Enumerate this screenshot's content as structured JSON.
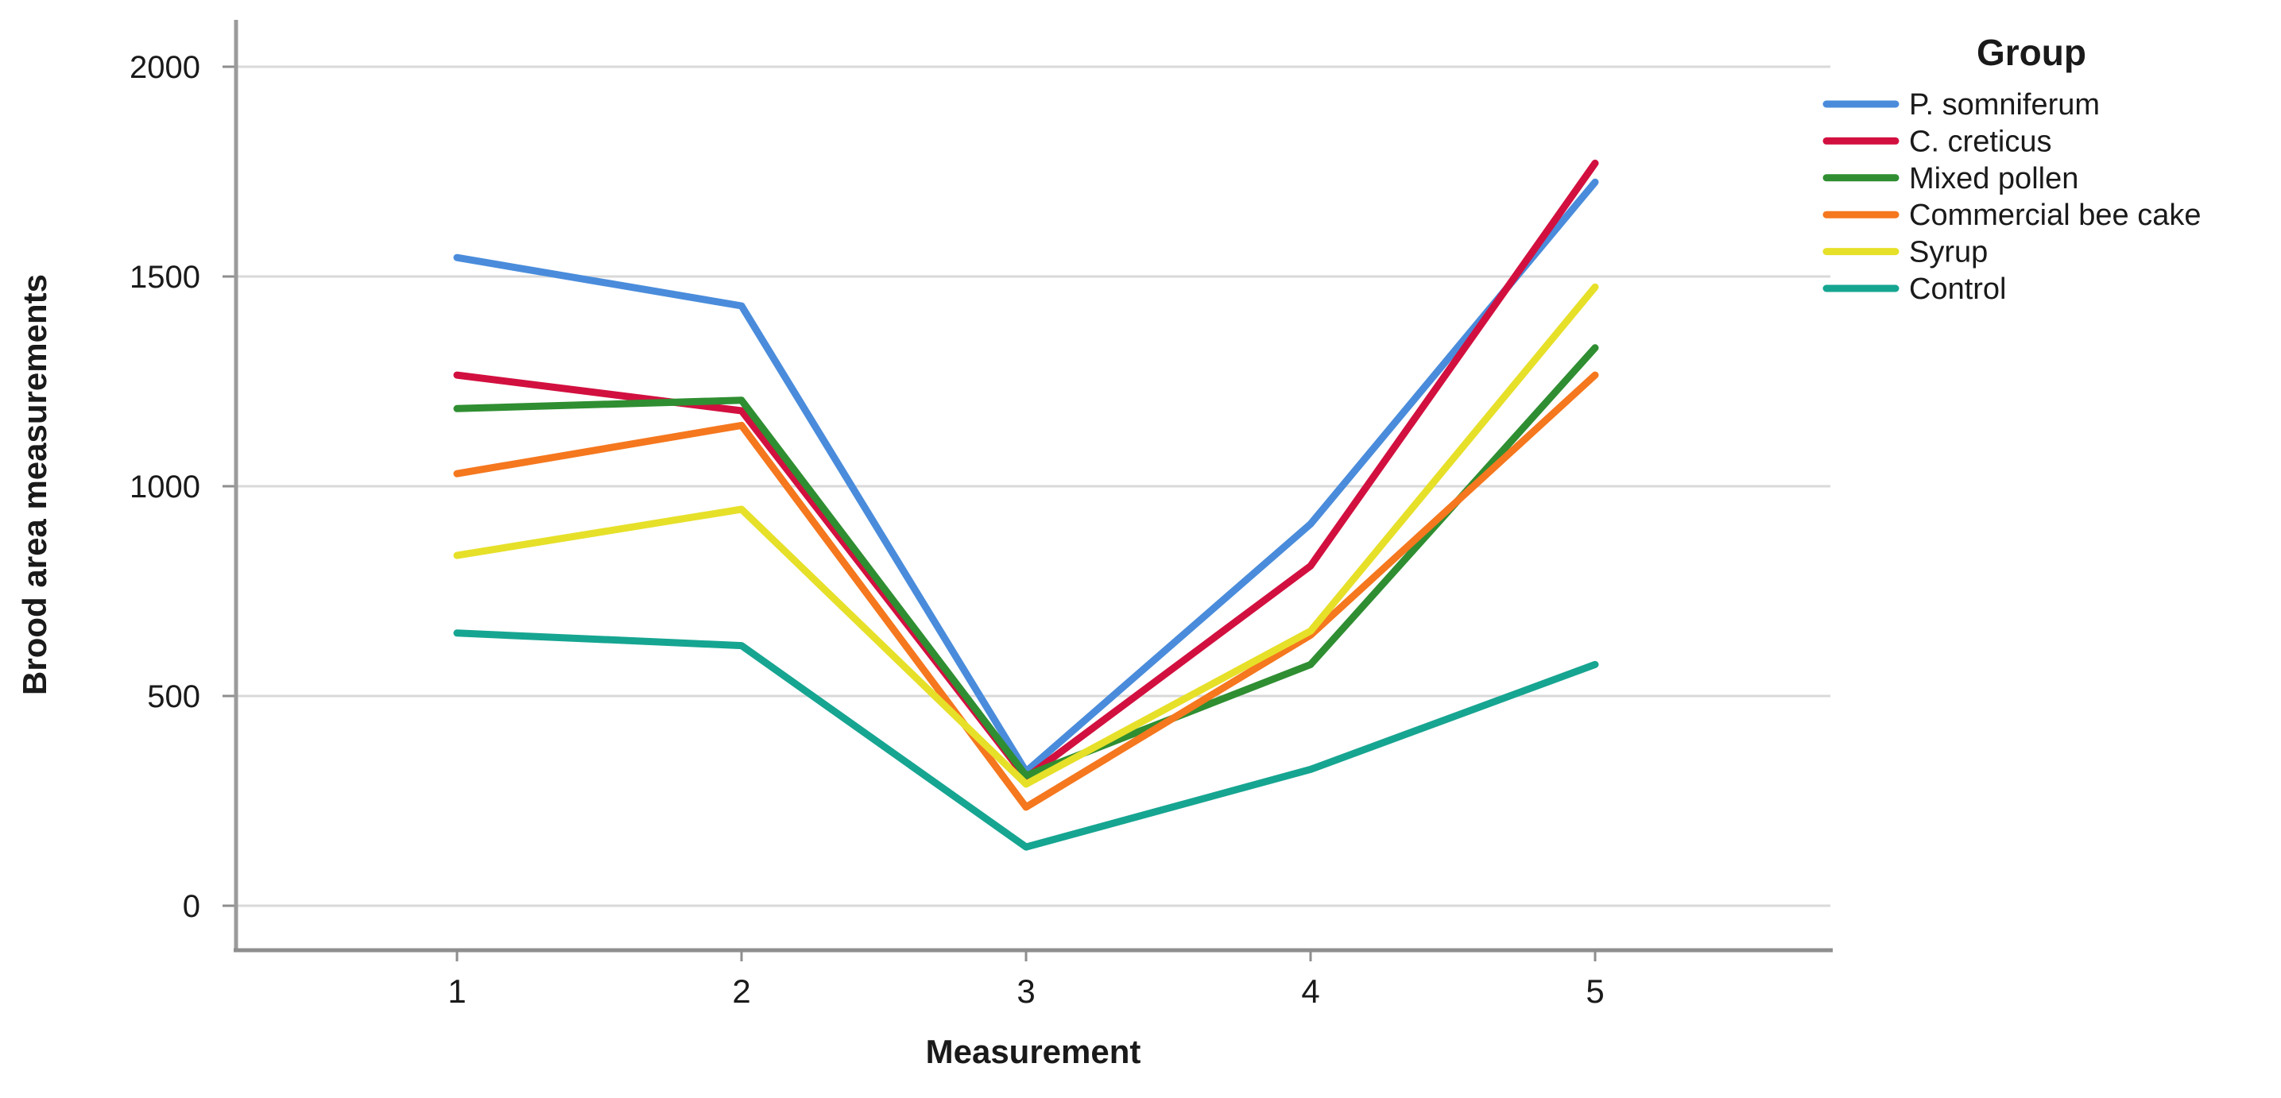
{
  "chart_data": {
    "type": "line",
    "title": "",
    "xlabel": "Measurement",
    "ylabel": "Brood area measurements",
    "legend_title": "Group",
    "legend_position": "right",
    "grid": true,
    "x": [
      1,
      2,
      3,
      4,
      5
    ],
    "x_tick_labels": [
      "1",
      "2",
      "3",
      "4",
      "5"
    ],
    "y_ticks": [
      0,
      500,
      1000,
      1500,
      2000
    ],
    "ylim": [
      0,
      2100
    ],
    "colors": {
      "background": "#ffffff",
      "gridline": "#d9d9d9",
      "axis_line": "#8e8e8e",
      "text": "#1a1a1a"
    },
    "series": [
      {
        "name": "P. somniferum",
        "color": "#4a8cdb",
        "values": [
          1545,
          1430,
          320,
          910,
          1725
        ]
      },
      {
        "name": "C. creticus",
        "color": "#d2103f",
        "values": [
          1265,
          1180,
          305,
          810,
          1770
        ]
      },
      {
        "name": "Mixed pollen",
        "color": "#2f8e31",
        "values": [
          1185,
          1205,
          310,
          575,
          1330
        ]
      },
      {
        "name": "Commercial bee cake",
        "color": "#f5771e",
        "values": [
          1030,
          1145,
          235,
          645,
          1265
        ]
      },
      {
        "name": "Syrup",
        "color": "#e6e029",
        "values": [
          835,
          945,
          290,
          655,
          1475
        ]
      },
      {
        "name": "Control",
        "color": "#16a591",
        "values": [
          650,
          620,
          140,
          325,
          575
        ]
      }
    ]
  }
}
